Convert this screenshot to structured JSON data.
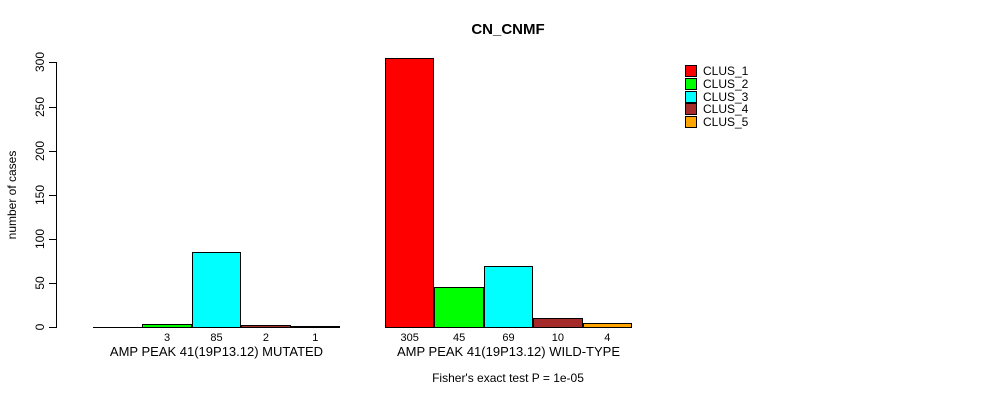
{
  "page": {
    "background": "#ffffff"
  },
  "chart_data": {
    "type": "bar",
    "title": "CN_CNMF",
    "ylabel": "number of cases",
    "ylim": [
      0,
      300
    ],
    "yticks": [
      0,
      50,
      100,
      150,
      200,
      250,
      300
    ],
    "grid": false,
    "legend_position": "right-outside",
    "footnote": "Fisher's exact test P = 1e-05",
    "legend": [
      {
        "name": "CLUS_1",
        "color": "#FF0000"
      },
      {
        "name": "CLUS_2",
        "color": "#00FF00"
      },
      {
        "name": "CLUS_3",
        "color": "#00FFFF"
      },
      {
        "name": "CLUS_4",
        "color": "#A52A2A"
      },
      {
        "name": "CLUS_5",
        "color": "#FFA500"
      }
    ],
    "groups": [
      {
        "label": "AMP PEAK 41(19P13.12) MUTATED",
        "bars": [
          {
            "cluster": "CLUS_1",
            "value": 0,
            "label": null
          },
          {
            "cluster": "CLUS_2",
            "value": 3,
            "label": "3"
          },
          {
            "cluster": "CLUS_3",
            "value": 85,
            "label": "85"
          },
          {
            "cluster": "CLUS_4",
            "value": 2,
            "label": "2"
          },
          {
            "cluster": "CLUS_5",
            "value": 1,
            "label": "1"
          }
        ]
      },
      {
        "label": "AMP PEAK 41(19P13.12) WILD-TYPE",
        "bars": [
          {
            "cluster": "CLUS_1",
            "value": 305,
            "label": "305"
          },
          {
            "cluster": "CLUS_2",
            "value": 45,
            "label": "45"
          },
          {
            "cluster": "CLUS_3",
            "value": 69,
            "label": "69"
          },
          {
            "cluster": "CLUS_4",
            "value": 10,
            "label": "10"
          },
          {
            "cluster": "CLUS_5",
            "value": 4,
            "label": "4"
          }
        ]
      }
    ]
  }
}
